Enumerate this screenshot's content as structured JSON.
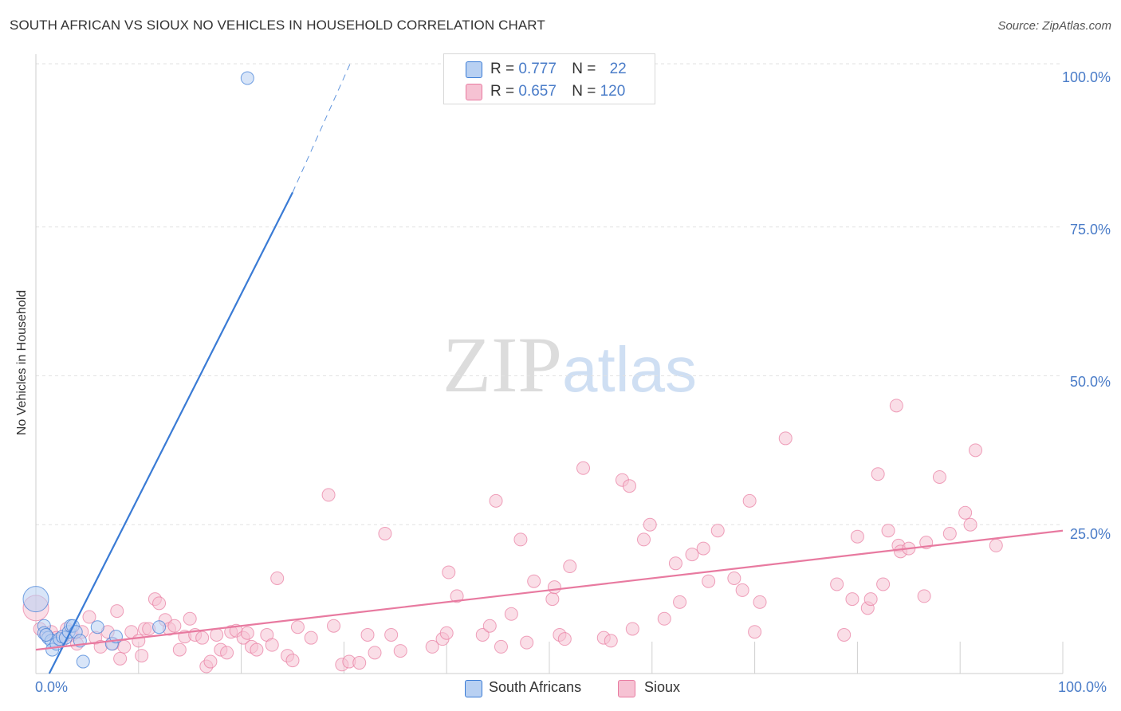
{
  "chart_data": {
    "type": "scatter",
    "title": "SOUTH AFRICAN VS SIOUX NO VEHICLES IN HOUSEHOLD CORRELATION CHART",
    "source": "Source: ZipAtlas.com",
    "ylabel": "No Vehicles in Household",
    "xlabel": "",
    "xlim": [
      0,
      100
    ],
    "ylim": [
      0,
      100
    ],
    "y_ticks": [
      "100.0%",
      "75.0%",
      "50.0%",
      "25.0%"
    ],
    "x_tick_labels": {
      "min": "0.0%",
      "max": "100.0%"
    },
    "grid": true,
    "legend_position": "top-center",
    "colors": {
      "south_africans": "#3a7bd5",
      "sioux": "#e87aa0",
      "south_africans_fill": "#b8d0f2",
      "sioux_fill": "#f6c2d3"
    },
    "series": [
      {
        "name": "South Africans",
        "r_label": "R =",
        "r_value": "0.777",
        "n_label": "N =",
        "n_value": "22",
        "points": [
          [
            0.0,
            12.5
          ],
          [
            0.8,
            8.0
          ],
          [
            0.8,
            6.8
          ],
          [
            1.2,
            6.0
          ],
          [
            1.5,
            5.5
          ],
          [
            1.6,
            4.0
          ],
          [
            2.0,
            5.0
          ],
          [
            2.3,
            5.8
          ],
          [
            2.6,
            6.2
          ],
          [
            2.9,
            6.0
          ],
          [
            3.2,
            7.0
          ],
          [
            3.4,
            8.0
          ],
          [
            3.6,
            8.0
          ],
          [
            3.9,
            7.0
          ],
          [
            4.3,
            5.5
          ],
          [
            4.6,
            2.0
          ],
          [
            6.0,
            7.8
          ],
          [
            7.4,
            5.0
          ],
          [
            7.8,
            6.2
          ],
          [
            12.0,
            7.8
          ],
          [
            20.6,
            100.0
          ],
          [
            1.0,
            6.5
          ]
        ],
        "trend": {
          "x0": 1.3,
          "y0": 0.0,
          "x1": 25.0,
          "y1": 80.8,
          "dash_x1": 30.6,
          "dash_y1": 100.0
        }
      },
      {
        "name": "Sioux",
        "r_label": "R =",
        "r_value": "0.657",
        "n_label": "N =",
        "n_value": "120",
        "points": [
          [
            0.0,
            11.0
          ],
          [
            0.4,
            7.5
          ],
          [
            1.0,
            6.5
          ],
          [
            1.5,
            7.0
          ],
          [
            2.0,
            6.0
          ],
          [
            2.5,
            5.5
          ],
          [
            3.0,
            7.5
          ],
          [
            3.5,
            6.5
          ],
          [
            4.0,
            5.0
          ],
          [
            4.5,
            7.0
          ],
          [
            5.2,
            9.5
          ],
          [
            5.8,
            6.0
          ],
          [
            6.3,
            4.5
          ],
          [
            7.0,
            7.0
          ],
          [
            7.5,
            5.0
          ],
          [
            7.9,
            10.5
          ],
          [
            8.2,
            2.5
          ],
          [
            8.6,
            4.5
          ],
          [
            9.3,
            7.0
          ],
          [
            10.0,
            5.5
          ],
          [
            10.3,
            3.0
          ],
          [
            10.6,
            7.5
          ],
          [
            11.0,
            7.5
          ],
          [
            11.6,
            12.5
          ],
          [
            12.0,
            11.8
          ],
          [
            12.6,
            9.0
          ],
          [
            13.0,
            7.5
          ],
          [
            13.5,
            8.0
          ],
          [
            14.0,
            4.0
          ],
          [
            14.5,
            6.2
          ],
          [
            15.0,
            9.2
          ],
          [
            15.5,
            6.5
          ],
          [
            16.2,
            6.0
          ],
          [
            16.6,
            1.2
          ],
          [
            17.0,
            2.0
          ],
          [
            17.6,
            6.5
          ],
          [
            18.0,
            4.0
          ],
          [
            18.6,
            3.5
          ],
          [
            19.0,
            7.0
          ],
          [
            19.5,
            7.2
          ],
          [
            20.2,
            6.0
          ],
          [
            20.6,
            6.8
          ],
          [
            21.0,
            4.5
          ],
          [
            21.5,
            4.0
          ],
          [
            22.5,
            6.5
          ],
          [
            23.0,
            4.8
          ],
          [
            23.5,
            16.0
          ],
          [
            24.5,
            3.0
          ],
          [
            25.0,
            2.2
          ],
          [
            25.5,
            7.8
          ],
          [
            26.8,
            6.0
          ],
          [
            28.5,
            30.0
          ],
          [
            29.0,
            8.0
          ],
          [
            29.8,
            1.5
          ],
          [
            30.5,
            2.0
          ],
          [
            31.5,
            1.8
          ],
          [
            32.3,
            6.5
          ],
          [
            33.0,
            3.5
          ],
          [
            34.0,
            23.5
          ],
          [
            34.6,
            6.5
          ],
          [
            35.5,
            3.8
          ],
          [
            38.6,
            4.5
          ],
          [
            39.6,
            5.8
          ],
          [
            40.0,
            6.8
          ],
          [
            40.2,
            17.0
          ],
          [
            41.0,
            13.0
          ],
          [
            43.5,
            6.5
          ],
          [
            44.2,
            8.0
          ],
          [
            44.8,
            29.0
          ],
          [
            45.3,
            4.5
          ],
          [
            46.3,
            10.0
          ],
          [
            47.2,
            22.5
          ],
          [
            47.8,
            5.2
          ],
          [
            48.5,
            15.5
          ],
          [
            50.3,
            12.5
          ],
          [
            50.5,
            14.5
          ],
          [
            51.0,
            6.5
          ],
          [
            51.5,
            5.8
          ],
          [
            52.0,
            18.0
          ],
          [
            53.3,
            34.5
          ],
          [
            55.3,
            6.0
          ],
          [
            56.0,
            5.5
          ],
          [
            57.1,
            32.5
          ],
          [
            57.8,
            31.5
          ],
          [
            58.1,
            7.5
          ],
          [
            59.2,
            22.5
          ],
          [
            59.8,
            25.0
          ],
          [
            61.2,
            9.2
          ],
          [
            62.3,
            18.5
          ],
          [
            62.7,
            12.0
          ],
          [
            63.9,
            20.0
          ],
          [
            65.0,
            21.0
          ],
          [
            65.5,
            15.5
          ],
          [
            66.4,
            24.0
          ],
          [
            68.0,
            16.0
          ],
          [
            68.8,
            14.0
          ],
          [
            69.5,
            29.0
          ],
          [
            70.0,
            7.0
          ],
          [
            70.5,
            12.0
          ],
          [
            73.0,
            39.5
          ],
          [
            78.0,
            15.0
          ],
          [
            78.7,
            6.5
          ],
          [
            79.5,
            12.5
          ],
          [
            80.0,
            23.0
          ],
          [
            81.0,
            11.0
          ],
          [
            81.3,
            12.5
          ],
          [
            82.0,
            33.5
          ],
          [
            82.5,
            15.0
          ],
          [
            83.0,
            24.0
          ],
          [
            83.8,
            45.0
          ],
          [
            84.0,
            21.5
          ],
          [
            84.2,
            20.5
          ],
          [
            85.0,
            21.0
          ],
          [
            86.5,
            13.0
          ],
          [
            86.7,
            22.0
          ],
          [
            88.0,
            33.0
          ],
          [
            89.0,
            23.5
          ],
          [
            90.5,
            27.0
          ],
          [
            91.0,
            25.0
          ],
          [
            91.5,
            37.5
          ],
          [
            93.5,
            21.5
          ]
        ],
        "trend": {
          "x0": 0.0,
          "y0": 4.0,
          "x1": 100.0,
          "y1": 24.0
        }
      }
    ]
  },
  "legend_bottom": [
    "South Africans",
    "Sioux"
  ],
  "watermark": {
    "zip": "ZIP",
    "atlas": "atlas"
  }
}
